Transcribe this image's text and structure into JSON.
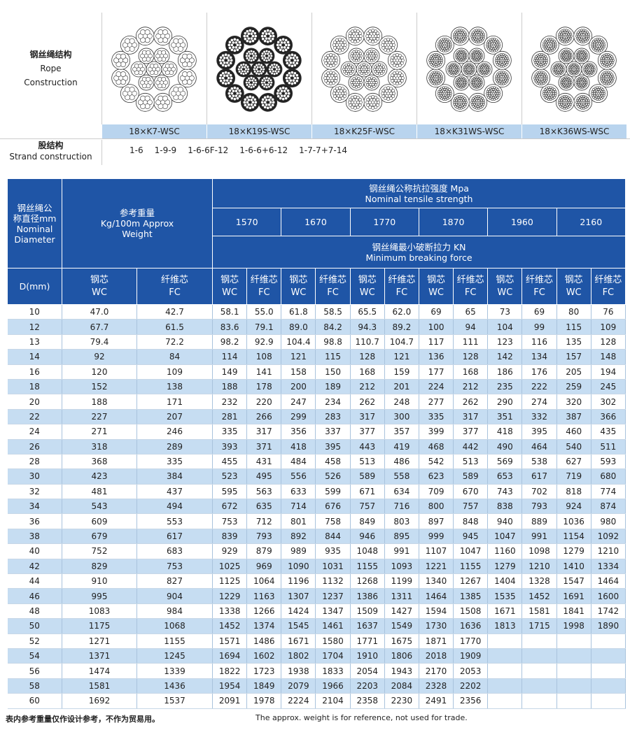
{
  "rope": {
    "label": [
      "钢丝绳结构",
      "Rope",
      "Construction"
    ],
    "constructions": [
      "18×K7-WSC",
      "18×K19S-WSC",
      "18×K25F-WSC",
      "18×K31WS-WSC",
      "18×K36WS-WSC"
    ]
  },
  "strand": {
    "label": [
      "股结构",
      "Strand construction"
    ],
    "values": [
      "1-6",
      "1-9-9",
      "1-6-6F-12",
      "1-6-6+6-12",
      "1-7-7+7-14"
    ]
  },
  "table": {
    "diameter_header": [
      "钢丝绳公",
      "称直径mm",
      "Nominal",
      "Diameter"
    ],
    "weight_header": [
      "参考重量",
      "Kg/100m Approx",
      "Weight"
    ],
    "strength_header": [
      "钢丝绳公称抗拉强度 Mpa",
      "Nominal tensile strength"
    ],
    "grades": [
      "1570",
      "1670",
      "1770",
      "1870",
      "1960",
      "2160"
    ],
    "force_header": [
      "钢丝绳最小破断拉力 KN",
      "Minimum breaking force"
    ],
    "d_label": "D(mm)",
    "core_types": [
      [
        "钢芯",
        "WC"
      ],
      [
        "纤维芯",
        "FC"
      ]
    ],
    "rows": [
      [
        "10",
        "47.0",
        "42.7",
        "58.1",
        "55.0",
        "61.8",
        "58.5",
        "65.5",
        "62.0",
        "69",
        "65",
        "73",
        "69",
        "80",
        "76"
      ],
      [
        "12",
        "67.7",
        "61.5",
        "83.6",
        "79.1",
        "89.0",
        "84.2",
        "94.3",
        "89.2",
        "100",
        "94",
        "104",
        "99",
        "115",
        "109"
      ],
      [
        "13",
        "79.4",
        "72.2",
        "98.2",
        "92.9",
        "104.4",
        "98.8",
        "110.7",
        "104.7",
        "117",
        "111",
        "123",
        "116",
        "135",
        "128"
      ],
      [
        "14",
        "92",
        "84",
        "114",
        "108",
        "121",
        "115",
        "128",
        "121",
        "136",
        "128",
        "142",
        "134",
        "157",
        "148"
      ],
      [
        "16",
        "120",
        "109",
        "149",
        "141",
        "158",
        "150",
        "168",
        "159",
        "177",
        "168",
        "186",
        "176",
        "205",
        "194"
      ],
      [
        "18",
        "152",
        "138",
        "188",
        "178",
        "200",
        "189",
        "212",
        "201",
        "224",
        "212",
        "235",
        "222",
        "259",
        "245"
      ],
      [
        "20",
        "188",
        "171",
        "232",
        "220",
        "247",
        "234",
        "262",
        "248",
        "277",
        "262",
        "290",
        "274",
        "320",
        "302"
      ],
      [
        "22",
        "227",
        "207",
        "281",
        "266",
        "299",
        "283",
        "317",
        "300",
        "335",
        "317",
        "351",
        "332",
        "387",
        "366"
      ],
      [
        "24",
        "271",
        "246",
        "335",
        "317",
        "356",
        "337",
        "377",
        "357",
        "399",
        "377",
        "418",
        "395",
        "460",
        "435"
      ],
      [
        "26",
        "318",
        "289",
        "393",
        "371",
        "418",
        "395",
        "443",
        "419",
        "468",
        "442",
        "490",
        "464",
        "540",
        "511"
      ],
      [
        "28",
        "368",
        "335",
        "455",
        "431",
        "484",
        "458",
        "513",
        "486",
        "542",
        "513",
        "569",
        "538",
        "627",
        "593"
      ],
      [
        "30",
        "423",
        "384",
        "523",
        "495",
        "556",
        "526",
        "589",
        "558",
        "623",
        "589",
        "653",
        "617",
        "719",
        "680"
      ],
      [
        "32",
        "481",
        "437",
        "595",
        "563",
        "633",
        "599",
        "671",
        "634",
        "709",
        "670",
        "743",
        "702",
        "818",
        "774"
      ],
      [
        "34",
        "543",
        "494",
        "672",
        "635",
        "714",
        "676",
        "757",
        "716",
        "800",
        "757",
        "838",
        "793",
        "924",
        "874"
      ],
      [
        "36",
        "609",
        "553",
        "753",
        "712",
        "801",
        "758",
        "849",
        "803",
        "897",
        "848",
        "940",
        "889",
        "1036",
        "980"
      ],
      [
        "38",
        "679",
        "617",
        "839",
        "793",
        "892",
        "844",
        "946",
        "895",
        "999",
        "945",
        "1047",
        "991",
        "1154",
        "1092"
      ],
      [
        "40",
        "752",
        "683",
        "929",
        "879",
        "989",
        "935",
        "1048",
        "991",
        "1107",
        "1047",
        "1160",
        "1098",
        "1279",
        "1210"
      ],
      [
        "42",
        "829",
        "753",
        "1025",
        "969",
        "1090",
        "1031",
        "1155",
        "1093",
        "1221",
        "1155",
        "1279",
        "1210",
        "1410",
        "1334"
      ],
      [
        "44",
        "910",
        "827",
        "1125",
        "1064",
        "1196",
        "1132",
        "1268",
        "1199",
        "1340",
        "1267",
        "1404",
        "1328",
        "1547",
        "1464"
      ],
      [
        "46",
        "995",
        "904",
        "1229",
        "1163",
        "1307",
        "1237",
        "1386",
        "1311",
        "1464",
        "1385",
        "1535",
        "1452",
        "1691",
        "1600"
      ],
      [
        "48",
        "1083",
        "984",
        "1338",
        "1266",
        "1424",
        "1347",
        "1509",
        "1427",
        "1594",
        "1508",
        "1671",
        "1581",
        "1841",
        "1742"
      ],
      [
        "50",
        "1175",
        "1068",
        "1452",
        "1374",
        "1545",
        "1461",
        "1637",
        "1549",
        "1730",
        "1636",
        "1813",
        "1715",
        "1998",
        "1890"
      ],
      [
        "52",
        "1271",
        "1155",
        "1571",
        "1486",
        "1671",
        "1580",
        "1771",
        "1675",
        "1871",
        "1770"
      ],
      [
        "54",
        "1371",
        "1245",
        "1694",
        "1602",
        "1802",
        "1704",
        "1910",
        "1806",
        "2018",
        "1909"
      ],
      [
        "56",
        "1474",
        "1339",
        "1822",
        "1723",
        "1938",
        "1833",
        "2054",
        "1943",
        "2170",
        "2053"
      ],
      [
        "58",
        "1581",
        "1436",
        "1954",
        "1849",
        "2079",
        "1966",
        "2203",
        "2084",
        "2328",
        "2202"
      ],
      [
        "60",
        "1692",
        "1537",
        "2091",
        "1978",
        "2224",
        "2104",
        "2358",
        "2230",
        "2491",
        "2356"
      ]
    ]
  },
  "footer": {
    "note_cn": "表内参考重量仅作设计参考，不作为贸易用。",
    "note_en": "The approx. weight is for reference, not used for trade."
  }
}
